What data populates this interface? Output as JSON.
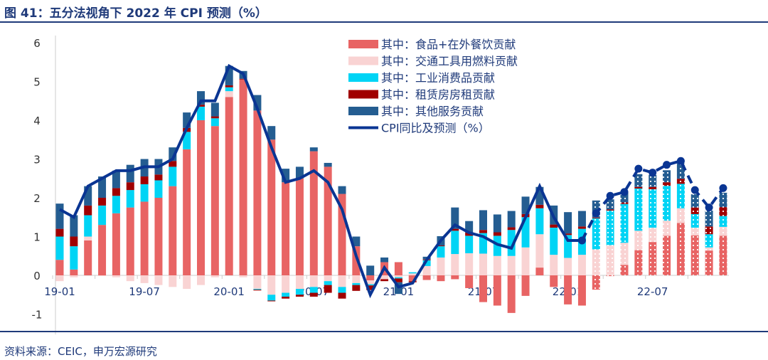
{
  "title": "图 41：五分法视角下 2022 年 CPI 预测（%）",
  "source": "资料来源：CEIC，申万宏源研究",
  "chart_data": {
    "type": "bar",
    "stacked": true,
    "title": "图 41：五分法视角下 2022 年 CPI 预测（%）",
    "ylim": [
      -1,
      6
    ],
    "yticks": [
      "-1",
      "0",
      "1",
      "2",
      "3",
      "4",
      "5",
      "6"
    ],
    "xtick_labels": [
      "19-01",
      "19-07",
      "20-01",
      "20-07",
      "21-01",
      "21-07",
      "22-01",
      "22-07"
    ],
    "categories": [
      "19-01",
      "19-02",
      "19-03",
      "19-04",
      "19-05",
      "19-06",
      "19-07",
      "19-08",
      "19-09",
      "19-10",
      "19-11",
      "19-12",
      "20-01",
      "20-02",
      "20-03",
      "20-04",
      "20-05",
      "20-06",
      "20-07",
      "20-08",
      "20-09",
      "20-10",
      "20-11",
      "20-12",
      "21-01",
      "21-02",
      "21-03",
      "21-04",
      "21-05",
      "21-06",
      "21-07",
      "21-08",
      "21-09",
      "21-10",
      "21-11",
      "21-12",
      "22-01",
      "22-02",
      "22-03",
      "22-04",
      "22-05",
      "22-06",
      "22-07",
      "22-08",
      "22-09",
      "22-10",
      "22-11",
      "22-12"
    ],
    "forecast_start": "22-03",
    "legend_position": "top-right",
    "series": [
      {
        "name": "其中：食品+在外餐饮贡献",
        "color": "#e86464",
        "values": [
          0.4,
          0.15,
          0.9,
          1.3,
          1.6,
          1.75,
          1.9,
          2.0,
          2.3,
          3.25,
          4.0,
          3.85,
          4.6,
          5.05,
          4.25,
          3.5,
          2.4,
          2.5,
          3.2,
          2.8,
          2.1,
          0.75,
          -0.13,
          0.34,
          0.34,
          -0.15,
          -0.12,
          -0.15,
          -0.1,
          -0.33,
          -0.69,
          -0.78,
          -0.97,
          -0.53,
          0.2,
          -0.3,
          -0.75,
          -0.78,
          -0.37,
          -0.02,
          0.27,
          0.65,
          0.86,
          1.02,
          1.35,
          1.03,
          0.64,
          1.02
        ]
      },
      {
        "name": "其中：交通工具用燃料贡献",
        "color": "#f9d3d3",
        "values": [
          -0.15,
          -0.05,
          0.1,
          -0.02,
          -0.05,
          -0.15,
          -0.2,
          -0.25,
          -0.3,
          -0.35,
          -0.25,
          -0.05,
          0.15,
          -0.05,
          -0.35,
          -0.5,
          -0.45,
          -0.35,
          -0.3,
          -0.15,
          -0.3,
          -0.2,
          -0.1,
          -0.1,
          -0.05,
          0.05,
          0.24,
          0.46,
          0.55,
          0.57,
          0.56,
          0.5,
          0.5,
          0.72,
          0.86,
          0.53,
          0.45,
          0.53,
          0.67,
          0.78,
          0.57,
          0.5,
          0.37,
          0.39,
          0.38,
          0.2,
          0.08,
          0.23
        ]
      },
      {
        "name": "其中：工业消费品贡献",
        "color": "#00d4f5",
        "values": [
          0.6,
          0.6,
          0.55,
          0.5,
          0.45,
          0.45,
          0.45,
          0.45,
          0.5,
          0.45,
          0.35,
          0.2,
          0.1,
          0.0,
          -0.02,
          -0.15,
          -0.1,
          -0.15,
          -0.15,
          -0.1,
          -0.15,
          -0.05,
          -0.03,
          0.0,
          -0.03,
          0.03,
          0.15,
          0.29,
          0.6,
          0.45,
          0.53,
          0.52,
          0.67,
          0.78,
          0.67,
          0.7,
          0.59,
          0.67,
          0.8,
          0.89,
          1.0,
          1.09,
          0.99,
          0.9,
          0.63,
          0.35,
          0.34,
          0.28
        ]
      },
      {
        "name": "其中：租赁房房租贡献",
        "color": "#a00000",
        "values": [
          0.2,
          0.25,
          0.25,
          0.2,
          0.2,
          0.2,
          0.2,
          0.15,
          0.15,
          0.1,
          0.05,
          0.05,
          0.05,
          0.02,
          -0.02,
          -0.02,
          -0.05,
          -0.05,
          -0.1,
          -0.2,
          -0.15,
          -0.15,
          -0.12,
          -0.05,
          -0.1,
          -0.03,
          0.02,
          0.02,
          0.05,
          0.08,
          0.08,
          0.09,
          0.07,
          0.08,
          0.09,
          0.08,
          0.04,
          0.06,
          0.02,
          0.03,
          0.04,
          0.04,
          0.06,
          0.09,
          0.13,
          0.17,
          0.2,
          0.23
        ]
      },
      {
        "name": "其中：其他服务贡献",
        "color": "#245d91",
        "values": [
          0.65,
          0.55,
          0.5,
          0.55,
          0.45,
          0.45,
          0.45,
          0.4,
          0.35,
          0.4,
          0.35,
          0.35,
          0.5,
          0.2,
          0.4,
          0.35,
          0.35,
          0.3,
          0.1,
          0.1,
          0.2,
          0.25,
          0.25,
          0.12,
          -0.3,
          0.0,
          0.07,
          0.24,
          0.55,
          0.3,
          0.51,
          0.46,
          0.42,
          0.45,
          0.46,
          0.49,
          0.55,
          0.4,
          0.44,
          0.26,
          0.28,
          0.33,
          0.31,
          0.31,
          0.4,
          0.34,
          0.41,
          0.37
        ]
      }
    ],
    "line": {
      "name": "CPI同比及预测（%）",
      "color": "#0a3593",
      "values": [
        1.7,
        1.5,
        2.3,
        2.5,
        2.7,
        2.7,
        2.8,
        2.8,
        3.0,
        3.8,
        4.5,
        4.5,
        5.4,
        5.2,
        4.3,
        3.3,
        2.4,
        2.5,
        2.7,
        2.4,
        1.7,
        0.5,
        -0.5,
        0.2,
        -0.3,
        -0.2,
        0.4,
        0.9,
        1.3,
        1.1,
        1.0,
        0.8,
        0.7,
        1.5,
        2.3,
        1.5,
        0.9,
        0.9,
        1.6,
        2.05,
        2.15,
        2.75,
        2.65,
        2.85,
        2.95,
        2.2,
        1.75,
        2.25
      ]
    }
  }
}
